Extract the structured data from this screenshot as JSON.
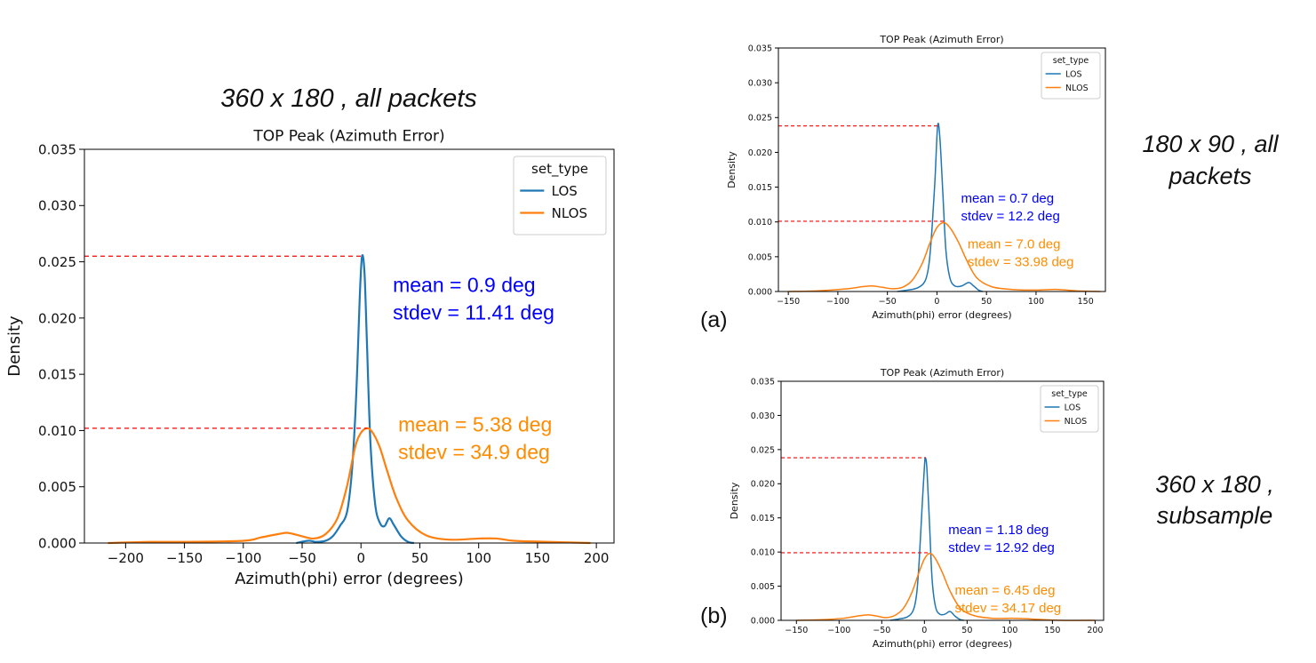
{
  "captions": {
    "main": "360 x 180 , all packets",
    "a_line1": "180 x 90 , all",
    "a_line2": "packets",
    "b_line1": "360 x 180 ,",
    "b_line2": "subsample"
  },
  "panel_labels": {
    "a": "(a)",
    "b": "(b)"
  },
  "colors": {
    "los": "#1f77b4",
    "nlos": "#ff7f0e",
    "los_text": "#0000ff",
    "nlos_text": "#ff8c00",
    "dash": "#ff0000"
  },
  "chart_data": [
    {
      "type": "line",
      "title": "TOP Peak (Azimuth Error)",
      "xlabel": "Azimuth(phi) error (degrees)",
      "ylabel": "Density",
      "xlim": [
        -235,
        215
      ],
      "ylim": [
        0,
        0.035
      ],
      "xticks": [
        -200,
        -150,
        -100,
        -50,
        0,
        50,
        100,
        150,
        200
      ],
      "xtick_labels": [
        "−200",
        "−150",
        "−100",
        "−50",
        "0",
        "50",
        "100",
        "150",
        "200"
      ],
      "yticks": [
        0,
        0.005,
        0.01,
        0.015,
        0.02,
        0.025,
        0.03,
        0.035
      ],
      "ytick_labels": [
        "0.000",
        "0.005",
        "0.010",
        "0.015",
        "0.020",
        "0.025",
        "0.030",
        "0.035"
      ],
      "legend": {
        "title": "set_type",
        "position": "top-right",
        "entries": [
          "LOS",
          "NLOS"
        ]
      },
      "series": [
        {
          "name": "LOS",
          "points": [
            [
              -55,
              0
            ],
            [
              -45,
              0.0002
            ],
            [
              -38,
              0.0001
            ],
            [
              -30,
              0.0002
            ],
            [
              -24,
              0.0006
            ],
            [
              -18,
              0.0015
            ],
            [
              -12,
              0.0027
            ],
            [
              -8,
              0.006
            ],
            [
              -5,
              0.011
            ],
            [
              -3,
              0.016
            ],
            [
              -1,
              0.022
            ],
            [
              0.9,
              0.0255
            ],
            [
              3,
              0.024
            ],
            [
              5,
              0.018
            ],
            [
              8,
              0.009
            ],
            [
              12,
              0.0035
            ],
            [
              16,
              0.0018
            ],
            [
              20,
              0.0015
            ],
            [
              24,
              0.0022
            ],
            [
              28,
              0.0016
            ],
            [
              34,
              0.0006
            ],
            [
              40,
              0.0001
            ],
            [
              45,
              0
            ]
          ]
        },
        {
          "name": "NLOS",
          "points": [
            [
              -215,
              0
            ],
            [
              -180,
              0.0001
            ],
            [
              -150,
              0.0001
            ],
            [
              -100,
              0.0002
            ],
            [
              -85,
              0.0005
            ],
            [
              -70,
              0.0008
            ],
            [
              -62,
              0.0009
            ],
            [
              -50,
              0.0006
            ],
            [
              -40,
              0.0004
            ],
            [
              -30,
              0.0008
            ],
            [
              -20,
              0.0022
            ],
            [
              -12,
              0.005
            ],
            [
              -5,
              0.0085
            ],
            [
              0,
              0.0098
            ],
            [
              5.38,
              0.0102
            ],
            [
              10,
              0.0098
            ],
            [
              16,
              0.0085
            ],
            [
              22,
              0.0065
            ],
            [
              30,
              0.004
            ],
            [
              40,
              0.002
            ],
            [
              55,
              0.0007
            ],
            [
              75,
              0.0003
            ],
            [
              100,
              0.0004
            ],
            [
              115,
              0.0004
            ],
            [
              130,
              0.0002
            ],
            [
              160,
              0.0001
            ],
            [
              195,
              0
            ]
          ]
        }
      ],
      "reference_lines": [
        {
          "series": "LOS",
          "x": 0.9,
          "y": 0.0255
        },
        {
          "series": "NLOS",
          "x": 5.38,
          "y": 0.0102
        }
      ],
      "annotations": {
        "los": [
          "mean = 0.9 deg",
          "stdev = 11.41 deg"
        ],
        "nlos": [
          "mean = 5.38 deg",
          "stdev = 34.9 deg"
        ]
      }
    },
    {
      "type": "line",
      "title": "TOP Peak (Azimuth Error)",
      "xlabel": "Azimuth(phi) error (degrees)",
      "ylabel": "Density",
      "xlim": [
        -160,
        170
      ],
      "ylim": [
        0,
        0.035
      ],
      "xticks": [
        -150,
        -100,
        -50,
        0,
        50,
        100,
        150
      ],
      "xtick_labels": [
        "−150",
        "−100",
        "−50",
        "0",
        "50",
        "100",
        "150"
      ],
      "yticks": [
        0,
        0.005,
        0.01,
        0.015,
        0.02,
        0.025,
        0.03,
        0.035
      ],
      "ytick_labels": [
        "0.000",
        "0.005",
        "0.010",
        "0.015",
        "0.020",
        "0.025",
        "0.030",
        "0.035"
      ],
      "legend": {
        "title": "set_type",
        "position": "top-right",
        "entries": [
          "LOS",
          "NLOS"
        ]
      },
      "series": [
        {
          "name": "LOS",
          "points": [
            [
              -40,
              0
            ],
            [
              -30,
              0.0002
            ],
            [
              -20,
              0.0005
            ],
            [
              -12,
              0.0015
            ],
            [
              -8,
              0.004
            ],
            [
              -5,
              0.009
            ],
            [
              -2,
              0.016
            ],
            [
              0.7,
              0.0238
            ],
            [
              3,
              0.022
            ],
            [
              6,
              0.014
            ],
            [
              9,
              0.006
            ],
            [
              13,
              0.002
            ],
            [
              18,
              0.0008
            ],
            [
              25,
              0.0008
            ],
            [
              32,
              0.0013
            ],
            [
              37,
              0.0008
            ],
            [
              42,
              0.0002
            ],
            [
              46,
              0
            ]
          ]
        },
        {
          "name": "NLOS",
          "points": [
            [
              -150,
              0
            ],
            [
              -120,
              0.0001
            ],
            [
              -90,
              0.0004
            ],
            [
              -75,
              0.0007
            ],
            [
              -65,
              0.0008
            ],
            [
              -55,
              0.0006
            ],
            [
              -45,
              0.0004
            ],
            [
              -35,
              0.0006
            ],
            [
              -25,
              0.0016
            ],
            [
              -15,
              0.004
            ],
            [
              -7,
              0.007
            ],
            [
              0,
              0.0092
            ],
            [
              7,
              0.0099
            ],
            [
              14,
              0.009
            ],
            [
              22,
              0.007
            ],
            [
              30,
              0.0045
            ],
            [
              40,
              0.002
            ],
            [
              55,
              0.0007
            ],
            [
              75,
              0.0003
            ],
            [
              100,
              0.0002
            ],
            [
              120,
              0.0003
            ],
            [
              140,
              0.0001
            ],
            [
              165,
              0
            ]
          ]
        }
      ],
      "reference_lines": [
        {
          "series": "LOS",
          "x": 0.7,
          "y": 0.0238
        },
        {
          "series": "NLOS",
          "x": 7.0,
          "y": 0.0101
        }
      ],
      "annotations": {
        "los": [
          "mean = 0.7 deg",
          "stdev = 12.2 deg"
        ],
        "nlos": [
          "mean = 7.0 deg",
          "stdev = 33.98 deg"
        ]
      }
    },
    {
      "type": "line",
      "title": "TOP Peak (Azimuth Error)",
      "xlabel": "Azimuth(phi) error (degrees)",
      "ylabel": "Density",
      "xlim": [
        -168,
        210
      ],
      "ylim": [
        0,
        0.035
      ],
      "xticks": [
        -150,
        -100,
        -50,
        0,
        50,
        100,
        150,
        200
      ],
      "xtick_labels": [
        "−150",
        "−100",
        "−50",
        "0",
        "50",
        "100",
        "150",
        "200"
      ],
      "yticks": [
        0,
        0.005,
        0.01,
        0.015,
        0.02,
        0.025,
        0.03,
        0.035
      ],
      "ytick_labels": [
        "0.000",
        "0.005",
        "0.010",
        "0.015",
        "0.020",
        "0.025",
        "0.030",
        "0.035"
      ],
      "legend": {
        "title": "set_type",
        "position": "top-right",
        "entries": [
          "LOS",
          "NLOS"
        ]
      },
      "series": [
        {
          "name": "LOS",
          "points": [
            [
              -40,
              0
            ],
            [
              -30,
              0.0002
            ],
            [
              -20,
              0.0005
            ],
            [
              -13,
              0.0015
            ],
            [
              -9,
              0.004
            ],
            [
              -6,
              0.009
            ],
            [
              -3,
              0.016
            ],
            [
              0,
              0.0225
            ],
            [
              1.18,
              0.0238
            ],
            [
              3,
              0.022
            ],
            [
              6,
              0.014
            ],
            [
              9,
              0.006
            ],
            [
              13,
              0.002
            ],
            [
              18,
              0.0009
            ],
            [
              24,
              0.0009
            ],
            [
              30,
              0.0013
            ],
            [
              36,
              0.0006
            ],
            [
              42,
              0.0001
            ],
            [
              46,
              0
            ]
          ]
        },
        {
          "name": "NLOS",
          "points": [
            [
              -150,
              0
            ],
            [
              -120,
              0.0001
            ],
            [
              -95,
              0.0003
            ],
            [
              -80,
              0.0006
            ],
            [
              -66,
              0.0008
            ],
            [
              -55,
              0.0006
            ],
            [
              -45,
              0.0004
            ],
            [
              -35,
              0.0007
            ],
            [
              -25,
              0.0017
            ],
            [
              -15,
              0.004
            ],
            [
              -7,
              0.0068
            ],
            [
              0,
              0.009
            ],
            [
              6.45,
              0.0098
            ],
            [
              13,
              0.009
            ],
            [
              21,
              0.007
            ],
            [
              30,
              0.0043
            ],
            [
              42,
              0.0018
            ],
            [
              58,
              0.0007
            ],
            [
              80,
              0.0003
            ],
            [
              105,
              0.0003
            ],
            [
              125,
              0.0002
            ],
            [
              160,
              0
            ],
            [
              200,
              0
            ]
          ]
        }
      ],
      "reference_lines": [
        {
          "series": "LOS",
          "x": 1.18,
          "y": 0.0238
        },
        {
          "series": "NLOS",
          "x": 6.45,
          "y": 0.0099
        }
      ],
      "annotations": {
        "los": [
          "mean = 1.18 deg",
          "stdev = 12.92 deg"
        ],
        "nlos": [
          "mean = 6.45 deg",
          "stdev = 34.17 deg"
        ]
      }
    }
  ]
}
